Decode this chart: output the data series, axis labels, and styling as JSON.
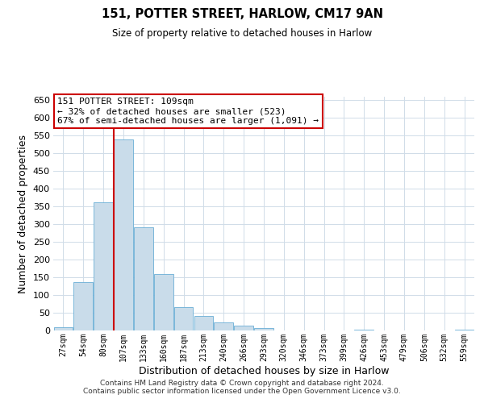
{
  "title": "151, POTTER STREET, HARLOW, CM17 9AN",
  "subtitle": "Size of property relative to detached houses in Harlow",
  "xlabel": "Distribution of detached houses by size in Harlow",
  "ylabel": "Number of detached properties",
  "bin_labels": [
    "27sqm",
    "54sqm",
    "80sqm",
    "107sqm",
    "133sqm",
    "160sqm",
    "187sqm",
    "213sqm",
    "240sqm",
    "266sqm",
    "293sqm",
    "320sqm",
    "346sqm",
    "373sqm",
    "399sqm",
    "426sqm",
    "453sqm",
    "479sqm",
    "506sqm",
    "532sqm",
    "559sqm"
  ],
  "bar_heights": [
    10,
    137,
    362,
    540,
    292,
    160,
    65,
    40,
    22,
    13,
    6,
    0,
    0,
    0,
    0,
    2,
    0,
    0,
    0,
    0,
    2
  ],
  "bar_color": "#c9dcea",
  "bar_edge_color": "#6aaed6",
  "vline_x_index": 3,
  "vline_color": "#cc0000",
  "annotation_title": "151 POTTER STREET: 109sqm",
  "annotation_line1": "← 32% of detached houses are smaller (523)",
  "annotation_line2": "67% of semi-detached houses are larger (1,091) →",
  "annotation_box_color": "#ffffff",
  "annotation_box_edge": "#cc0000",
  "ylim": [
    0,
    660
  ],
  "yticks": [
    0,
    50,
    100,
    150,
    200,
    250,
    300,
    350,
    400,
    450,
    500,
    550,
    600,
    650
  ],
  "footer_line1": "Contains HM Land Registry data © Crown copyright and database right 2024.",
  "footer_line2": "Contains public sector information licensed under the Open Government Licence v3.0.",
  "background_color": "#ffffff",
  "grid_color": "#d0dce8"
}
